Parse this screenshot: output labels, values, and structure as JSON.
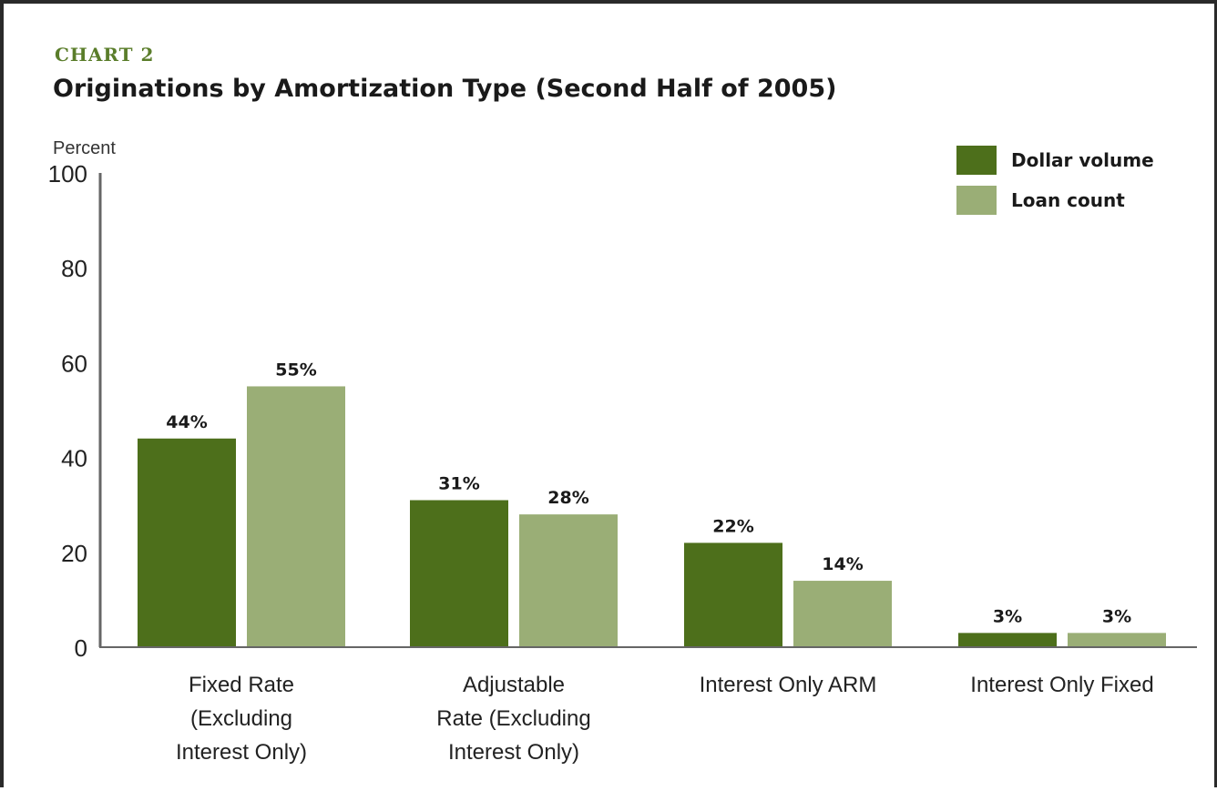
{
  "header": {
    "eyebrow": "CHART 2",
    "title": "Originations by Amortization Type (Second Half of 2005)"
  },
  "colors": {
    "dollar_volume": "#4d6f1b",
    "loan_count": "#9aae76",
    "axis": "#666666",
    "border": "#2a2a2a",
    "eyebrow": "#5a7d2a"
  },
  "chart_data": {
    "type": "bar",
    "title": "Originations by Amortization Type (Second Half of 2005)",
    "ylabel": "Percent",
    "xlabel": "",
    "ylim": [
      0,
      100
    ],
    "yticks": [
      0,
      20,
      40,
      60,
      80,
      100
    ],
    "grid": false,
    "legend_position": "top-right",
    "categories": [
      "Fixed Rate (Excluding Interest Only)",
      "Adjustable Rate (Excluding Interest Only)",
      "Interest Only ARM",
      "Interest Only Fixed"
    ],
    "category_lines": [
      [
        "Fixed Rate",
        "(Excluding",
        "Interest Only)"
      ],
      [
        "Adjustable",
        "Rate (Excluding",
        "Interest Only)"
      ],
      [
        "Interest Only ARM"
      ],
      [
        "Interest Only Fixed"
      ]
    ],
    "series": [
      {
        "name": "Dollar volume",
        "values": [
          44,
          31,
          22,
          3
        ],
        "labels": [
          "44%",
          "31%",
          "22%",
          "3%"
        ]
      },
      {
        "name": "Loan count",
        "values": [
          55,
          28,
          14,
          3
        ],
        "labels": [
          "55%",
          "28%",
          "14%",
          "3%"
        ]
      }
    ]
  }
}
